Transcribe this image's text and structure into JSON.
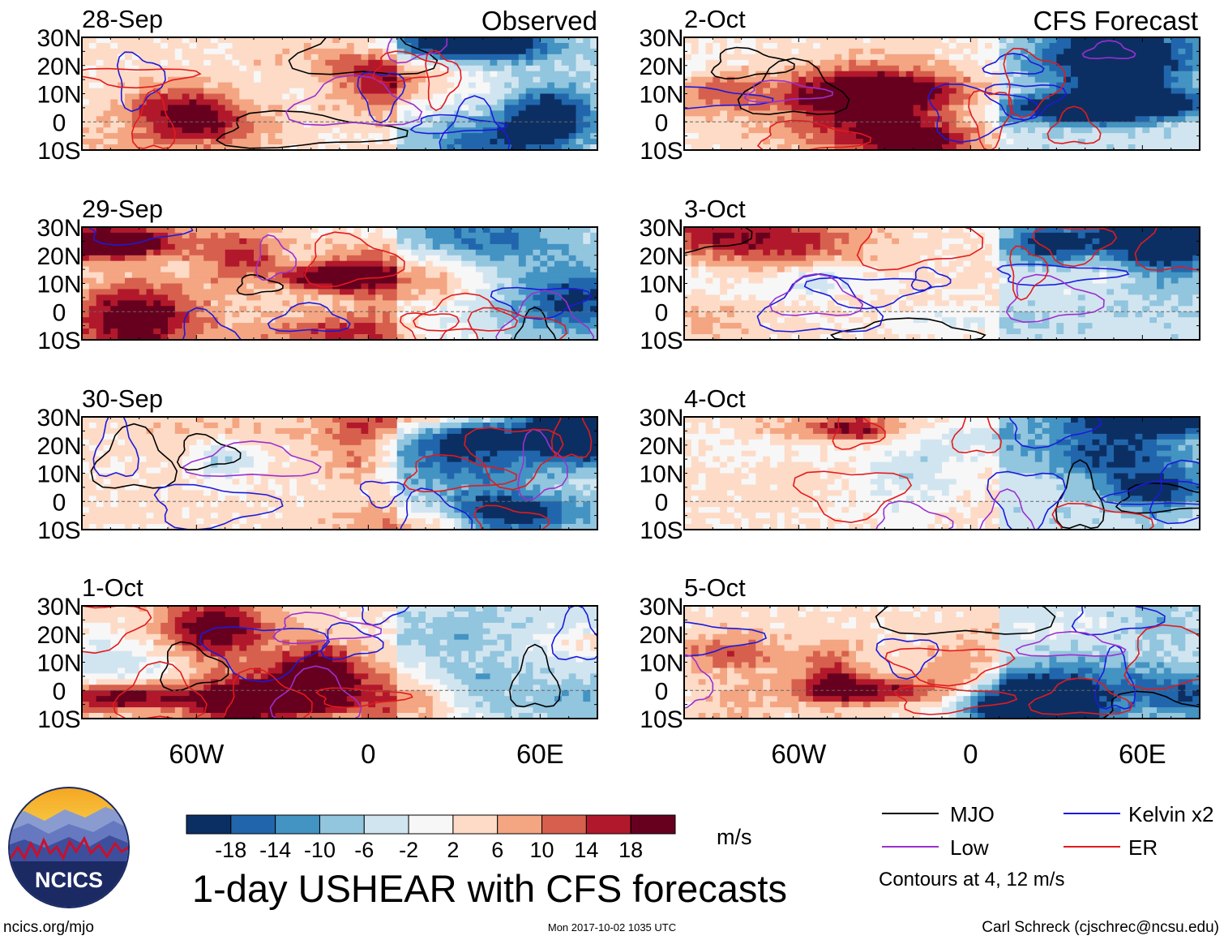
{
  "title": "1-day USHEAR with CFS forecasts",
  "headers": {
    "left": "Observed",
    "right": "CFS Forecast"
  },
  "footer": {
    "left": "ncics.org/mjo",
    "center": "Mon 2017-10-02 1035 UTC",
    "right": "Carl Schreck (cjschrec@ncsu.edu)"
  },
  "logo": {
    "text": "NCICS"
  },
  "legend": {
    "items": [
      {
        "label": "MJO",
        "color": "#000000"
      },
      {
        "label": "Kelvin x2",
        "color": "#1a1adc"
      },
      {
        "label": "Low",
        "color": "#9b30d0"
      },
      {
        "label": "ER",
        "color": "#e31a1c"
      }
    ],
    "note": "Contours at 4, 12 m/s"
  },
  "colorbar": {
    "units": "m/s",
    "boundaries": [
      -18,
      -14,
      -10,
      -6,
      -2,
      2,
      6,
      10,
      14,
      18
    ],
    "tick_labels": [
      "-18",
      "-14",
      "-10",
      "-6",
      "-2",
      "2",
      "6",
      "10",
      "14",
      "18"
    ],
    "colors": [
      "#0c2f63",
      "#2166ac",
      "#4393c3",
      "#92c5de",
      "#d1e5f0",
      "#f7f7f7",
      "#fddbc7",
      "#f4a582",
      "#d6604d",
      "#b2182b",
      "#67001f"
    ]
  },
  "chart_data": {
    "type": "heatmap",
    "variable": "1-day USHEAR",
    "units": "m/s",
    "x_range": [
      -100,
      80
    ],
    "y_range": [
      -10,
      30
    ],
    "x_ticks": [
      {
        "value": -60,
        "label": "60W"
      },
      {
        "value": 0,
        "label": "0"
      },
      {
        "value": 60,
        "label": "60E"
      }
    ],
    "y_ticks": [
      {
        "value": 30,
        "label": "30N"
      },
      {
        "value": 20,
        "label": "20N"
      },
      {
        "value": 10,
        "label": "10N"
      },
      {
        "value": 0,
        "label": "0"
      },
      {
        "value": -10,
        "label": "10S"
      }
    ],
    "panels": [
      {
        "date": "28-Sep",
        "source": "Observed",
        "seed": 11
      },
      {
        "date": "29-Sep",
        "source": "Observed",
        "seed": 23
      },
      {
        "date": "30-Sep",
        "source": "Observed",
        "seed": 37
      },
      {
        "date": "1-Oct",
        "source": "Observed",
        "seed": 41
      },
      {
        "date": "2-Oct",
        "source": "CFS Forecast",
        "seed": 53
      },
      {
        "date": "3-Oct",
        "source": "CFS Forecast",
        "seed": 67
      },
      {
        "date": "4-Oct",
        "source": "CFS Forecast",
        "seed": 79
      },
      {
        "date": "5-Oct",
        "source": "CFS Forecast",
        "seed": 83
      }
    ]
  }
}
